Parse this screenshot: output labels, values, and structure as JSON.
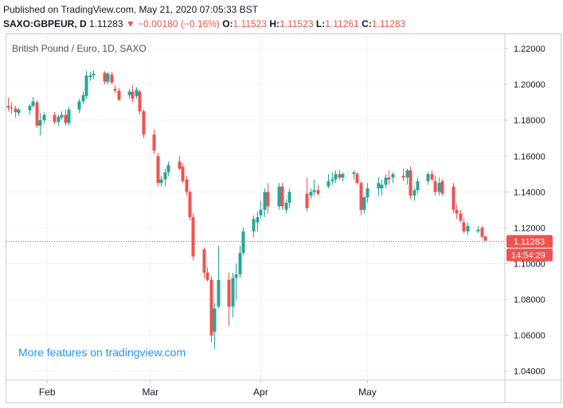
{
  "header": {
    "published": "Published on TradingView.com, May 21, 2020 07:05:33 BST",
    "symbol": "SAXO:GBPEUR, D",
    "last": "1.11283",
    "change": "−0.00180 (−0.16%)",
    "o_label": "O:",
    "o_val": "1.11523",
    "h_label": "H:",
    "h_val": "1.11523",
    "l_label": "L:",
    "l_val": "1.11261",
    "c_label": "C:",
    "c_val": "1.11283"
  },
  "colors": {
    "up": "#26a69a",
    "down": "#ef5350",
    "price_line": "#ef5350",
    "grid": "#f0f3fa",
    "watermark": "#2196f3"
  },
  "chart_data": {
    "type": "candlestick",
    "title": "British Pound / Euro, 1D, SAXO",
    "watermark": "More features on tradingview.com",
    "ylim": [
      1.035,
      1.228
    ],
    "y_ticks": [
      "1.22000",
      "1.20000",
      "1.18000",
      "1.16000",
      "1.14000",
      "1.12000",
      "1.10000",
      "1.08000",
      "1.06000",
      "1.04000"
    ],
    "x_ticks": [
      "Feb",
      "Mar",
      "Apr",
      "May"
    ],
    "last_price": "1.11283",
    "countdown": "14:54:29",
    "candles": [
      {
        "date": "2020-01-21",
        "o": 1.188,
        "h": 1.1925,
        "l": 1.185,
        "c": 1.187
      },
      {
        "date": "2020-01-22",
        "o": 1.187,
        "h": 1.19,
        "l": 1.1835,
        "c": 1.1865
      },
      {
        "date": "2020-01-23",
        "o": 1.1865,
        "h": 1.188,
        "l": 1.1815,
        "c": 1.1845
      },
      {
        "date": "2020-01-24",
        "o": 1.184,
        "h": 1.187,
        "l": 1.1825,
        "c": 1.186
      },
      {
        "date": "2020-01-27",
        "o": 1.1855,
        "h": 1.189,
        "l": 1.183,
        "c": 1.188
      },
      {
        "date": "2020-01-28",
        "o": 1.188,
        "h": 1.193,
        "l": 1.187,
        "c": 1.1905
      },
      {
        "date": "2020-01-29",
        "o": 1.19,
        "h": 1.191,
        "l": 1.1755,
        "c": 1.177
      },
      {
        "date": "2020-01-30",
        "o": 1.177,
        "h": 1.184,
        "l": 1.1715,
        "c": 1.18
      },
      {
        "date": "2020-01-31",
        "o": 1.18,
        "h": 1.1845,
        "l": 1.178,
        "c": 1.183
      },
      {
        "date": "2020-02-03",
        "o": 1.183,
        "h": 1.1845,
        "l": 1.178,
        "c": 1.179
      },
      {
        "date": "2020-02-04",
        "o": 1.179,
        "h": 1.183,
        "l": 1.177,
        "c": 1.182
      },
      {
        "date": "2020-02-05",
        "o": 1.1815,
        "h": 1.185,
        "l": 1.18,
        "c": 1.183
      },
      {
        "date": "2020-02-06",
        "o": 1.183,
        "h": 1.186,
        "l": 1.177,
        "c": 1.1785
      },
      {
        "date": "2020-02-07",
        "o": 1.1785,
        "h": 1.1875,
        "l": 1.177,
        "c": 1.186
      },
      {
        "date": "2020-02-10",
        "o": 1.186,
        "h": 1.192,
        "l": 1.184,
        "c": 1.1905
      },
      {
        "date": "2020-02-11",
        "o": 1.1905,
        "h": 1.196,
        "l": 1.189,
        "c": 1.194
      },
      {
        "date": "2020-02-12",
        "o": 1.1935,
        "h": 1.2075,
        "l": 1.192,
        "c": 1.205
      },
      {
        "date": "2020-02-13",
        "o": 1.204,
        "h": 1.207,
        "l": 1.202,
        "c": 1.205
      },
      {
        "date": "2020-02-14",
        "o": 1.205,
        "h": 1.208,
        "l": 1.203,
        "c": 1.206
      },
      {
        "date": "2020-02-17",
        "o": 1.2065,
        "h": 1.2075,
        "l": 1.2,
        "c": 1.2015
      },
      {
        "date": "2020-02-18",
        "o": 1.2015,
        "h": 1.207,
        "l": 1.2,
        "c": 1.206
      },
      {
        "date": "2020-02-19",
        "o": 1.2055,
        "h": 1.207,
        "l": 1.2,
        "c": 1.201
      },
      {
        "date": "2020-02-20",
        "o": 1.1975,
        "h": 1.1995,
        "l": 1.195,
        "c": 1.1965
      },
      {
        "date": "2020-02-21",
        "o": 1.1965,
        "h": 1.198,
        "l": 1.1905,
        "c": 1.1915
      },
      {
        "date": "2020-02-24",
        "o": 1.194,
        "h": 1.1975,
        "l": 1.192,
        "c": 1.196
      },
      {
        "date": "2020-02-25",
        "o": 1.196,
        "h": 1.1995,
        "l": 1.19,
        "c": 1.192
      },
      {
        "date": "2020-02-26",
        "o": 1.1935,
        "h": 1.1985,
        "l": 1.192,
        "c": 1.197
      },
      {
        "date": "2020-02-27",
        "o": 1.196,
        "h": 1.197,
        "l": 1.183,
        "c": 1.185
      },
      {
        "date": "2020-02-28",
        "o": 1.185,
        "h": 1.186,
        "l": 1.17,
        "c": 1.172
      },
      {
        "date": "2020-03-02",
        "o": 1.172,
        "h": 1.175,
        "l": 1.161,
        "c": 1.163
      },
      {
        "date": "2020-03-03",
        "o": 1.16,
        "h": 1.162,
        "l": 1.143,
        "c": 1.145
      },
      {
        "date": "2020-03-04",
        "o": 1.145,
        "h": 1.149,
        "l": 1.143,
        "c": 1.147
      },
      {
        "date": "2020-03-05",
        "o": 1.147,
        "h": 1.153,
        "l": 1.143,
        "c": 1.151
      },
      {
        "date": "2020-03-06",
        "o": 1.151,
        "h": 1.157,
        "l": 1.149,
        "c": 1.155
      },
      {
        "date": "2020-03-09",
        "o": 1.157,
        "h": 1.16,
        "l": 1.152,
        "c": 1.153
      },
      {
        "date": "2020-03-10",
        "o": 1.154,
        "h": 1.156,
        "l": 1.145,
        "c": 1.146
      },
      {
        "date": "2020-03-11",
        "o": 1.147,
        "h": 1.149,
        "l": 1.138,
        "c": 1.14
      },
      {
        "date": "2020-03-12",
        "o": 1.14,
        "h": 1.141,
        "l": 1.124,
        "c": 1.126
      },
      {
        "date": "2020-03-13",
        "o": 1.126,
        "h": 1.128,
        "l": 1.102,
        "c": 1.104
      },
      {
        "date": "2020-03-16",
        "o": 1.108,
        "h": 1.109,
        "l": 1.092,
        "c": 1.095
      },
      {
        "date": "2020-03-17",
        "o": 1.095,
        "h": 1.098,
        "l": 1.09,
        "c": 1.091
      },
      {
        "date": "2020-03-18",
        "o": 1.091,
        "h": 1.093,
        "l": 1.056,
        "c": 1.06
      },
      {
        "date": "2020-03-19",
        "o": 1.062,
        "h": 1.078,
        "l": 1.0525,
        "c": 1.075
      },
      {
        "date": "2020-03-20",
        "o": 1.076,
        "h": 1.11,
        "l": 1.075,
        "c": 1.091
      },
      {
        "date": "2020-03-23",
        "o": 1.091,
        "h": 1.095,
        "l": 1.065,
        "c": 1.076
      },
      {
        "date": "2020-03-24",
        "o": 1.076,
        "h": 1.095,
        "l": 1.07,
        "c": 1.092
      },
      {
        "date": "2020-03-25",
        "o": 1.092,
        "h": 1.1,
        "l": 1.08,
        "c": 1.094
      },
      {
        "date": "2020-03-26",
        "o": 1.094,
        "h": 1.11,
        "l": 1.092,
        "c": 1.106
      },
      {
        "date": "2020-03-27",
        "o": 1.106,
        "h": 1.12,
        "l": 1.105,
        "c": 1.118
      },
      {
        "date": "2020-03-30",
        "o": 1.118,
        "h": 1.127,
        "l": 1.115,
        "c": 1.125
      },
      {
        "date": "2020-03-31",
        "o": 1.123,
        "h": 1.129,
        "l": 1.118,
        "c": 1.126
      },
      {
        "date": "2020-04-01",
        "o": 1.127,
        "h": 1.135,
        "l": 1.125,
        "c": 1.13
      },
      {
        "date": "2020-04-02",
        "o": 1.13,
        "h": 1.142,
        "l": 1.126,
        "c": 1.14
      },
      {
        "date": "2020-04-03",
        "o": 1.14,
        "h": 1.145,
        "l": 1.128,
        "c": 1.132
      },
      {
        "date": "2020-04-06",
        "o": 1.132,
        "h": 1.145,
        "l": 1.13,
        "c": 1.143
      },
      {
        "date": "2020-04-07",
        "o": 1.143,
        "h": 1.145,
        "l": 1.13,
        "c": 1.132
      },
      {
        "date": "2020-04-08",
        "o": 1.13,
        "h": 1.136,
        "l": 1.128,
        "c": 1.134
      },
      {
        "date": "2020-04-09",
        "o": 1.134,
        "h": 1.142,
        "l": 1.131,
        "c": 1.14
      },
      {
        "date": "2020-04-14",
        "o": 1.139,
        "h": 1.148,
        "l": 1.129,
        "c": 1.131
      },
      {
        "date": "2020-04-15",
        "o": 1.138,
        "h": 1.142,
        "l": 1.136,
        "c": 1.14
      },
      {
        "date": "2020-04-16",
        "o": 1.14,
        "h": 1.147,
        "l": 1.138,
        "c": 1.141
      },
      {
        "date": "2020-04-17",
        "o": 1.141,
        "h": 1.144,
        "l": 1.138,
        "c": 1.139
      },
      {
        "date": "2020-04-20",
        "o": 1.143,
        "h": 1.15,
        "l": 1.142,
        "c": 1.146
      },
      {
        "date": "2020-04-21",
        "o": 1.146,
        "h": 1.151,
        "l": 1.144,
        "c": 1.147
      },
      {
        "date": "2020-04-22",
        "o": 1.147,
        "h": 1.152,
        "l": 1.145,
        "c": 1.15
      },
      {
        "date": "2020-04-23",
        "o": 1.15,
        "h": 1.152,
        "l": 1.147,
        "c": 1.148
      },
      {
        "date": "2020-04-24",
        "o": 1.148,
        "h": 1.151,
        "l": 1.146,
        "c": 1.15
      },
      {
        "date": "2020-04-27",
        "o": 1.15,
        "h": 1.152,
        "l": 1.147,
        "c": 1.151
      },
      {
        "date": "2020-04-28",
        "o": 1.15,
        "h": 1.151,
        "l": 1.144,
        "c": 1.145
      },
      {
        "date": "2020-04-29",
        "o": 1.145,
        "h": 1.146,
        "l": 1.127,
        "c": 1.13
      },
      {
        "date": "2020-04-30",
        "o": 1.13,
        "h": 1.138,
        "l": 1.128,
        "c": 1.137
      },
      {
        "date": "2020-05-01",
        "o": 1.137,
        "h": 1.145,
        "l": 1.134,
        "c": 1.142
      },
      {
        "date": "2020-05-04",
        "o": 1.142,
        "h": 1.148,
        "l": 1.138,
        "c": 1.145
      },
      {
        "date": "2020-05-05",
        "o": 1.142,
        "h": 1.147,
        "l": 1.138,
        "c": 1.144
      },
      {
        "date": "2020-05-06",
        "o": 1.144,
        "h": 1.15,
        "l": 1.142,
        "c": 1.148
      },
      {
        "date": "2020-05-07",
        "o": 1.148,
        "h": 1.152,
        "l": 1.144,
        "c": 1.147
      },
      {
        "date": "2020-05-08",
        "o": 1.148,
        "h": 1.151,
        "l": 1.145,
        "c": 1.15
      },
      {
        "date": "2020-05-11",
        "o": 1.149,
        "h": 1.153,
        "l": 1.146,
        "c": 1.148
      },
      {
        "date": "2020-05-12",
        "o": 1.148,
        "h": 1.153,
        "l": 1.144,
        "c": 1.152
      },
      {
        "date": "2020-05-13",
        "o": 1.152,
        "h": 1.154,
        "l": 1.136,
        "c": 1.138
      },
      {
        "date": "2020-05-14",
        "o": 1.138,
        "h": 1.142,
        "l": 1.135,
        "c": 1.141
      },
      {
        "date": "2020-05-15",
        "o": 1.141,
        "h": 1.148,
        "l": 1.139,
        "c": 1.146
      },
      {
        "date": "2020-05-18",
        "o": 1.146,
        "h": 1.151,
        "l": 1.144,
        "c": 1.15
      },
      {
        "date": "2020-05-19",
        "o": 1.15,
        "h": 1.152,
        "l": 1.146,
        "c": 1.147
      },
      {
        "date": "2020-05-20",
        "o": 1.146,
        "h": 1.149,
        "l": 1.138,
        "c": 1.14
      },
      {
        "date": "2020-05-21",
        "o": 1.14,
        "h": 1.148,
        "l": 1.138,
        "c": 1.145
      },
      {
        "date": "2020-05-22",
        "o": 1.146,
        "h": 1.147,
        "l": 1.138,
        "c": 1.139
      },
      {
        "date": "2020-05-25",
        "o": 1.143,
        "h": 1.145,
        "l": 1.128,
        "c": 1.13
      },
      {
        "date": "2020-05-26",
        "o": 1.13,
        "h": 1.133,
        "l": 1.125,
        "c": 1.128
      },
      {
        "date": "2020-05-27",
        "o": 1.128,
        "h": 1.13,
        "l": 1.123,
        "c": 1.124
      },
      {
        "date": "2020-05-28",
        "o": 1.123,
        "h": 1.125,
        "l": 1.117,
        "c": 1.118
      },
      {
        "date": "2020-05-29",
        "o": 1.118,
        "h": 1.123,
        "l": 1.116,
        "c": 1.121
      },
      {
        "date": "2020-06-01",
        "o": 1.118,
        "h": 1.121,
        "l": 1.117,
        "c": 1.119
      },
      {
        "date": "2020-06-02",
        "o": 1.12,
        "h": 1.121,
        "l": 1.114,
        "c": 1.115
      },
      {
        "date": "2020-06-03",
        "o": 1.1152,
        "h": 1.1152,
        "l": 1.1126,
        "c": 1.1128
      }
    ]
  }
}
